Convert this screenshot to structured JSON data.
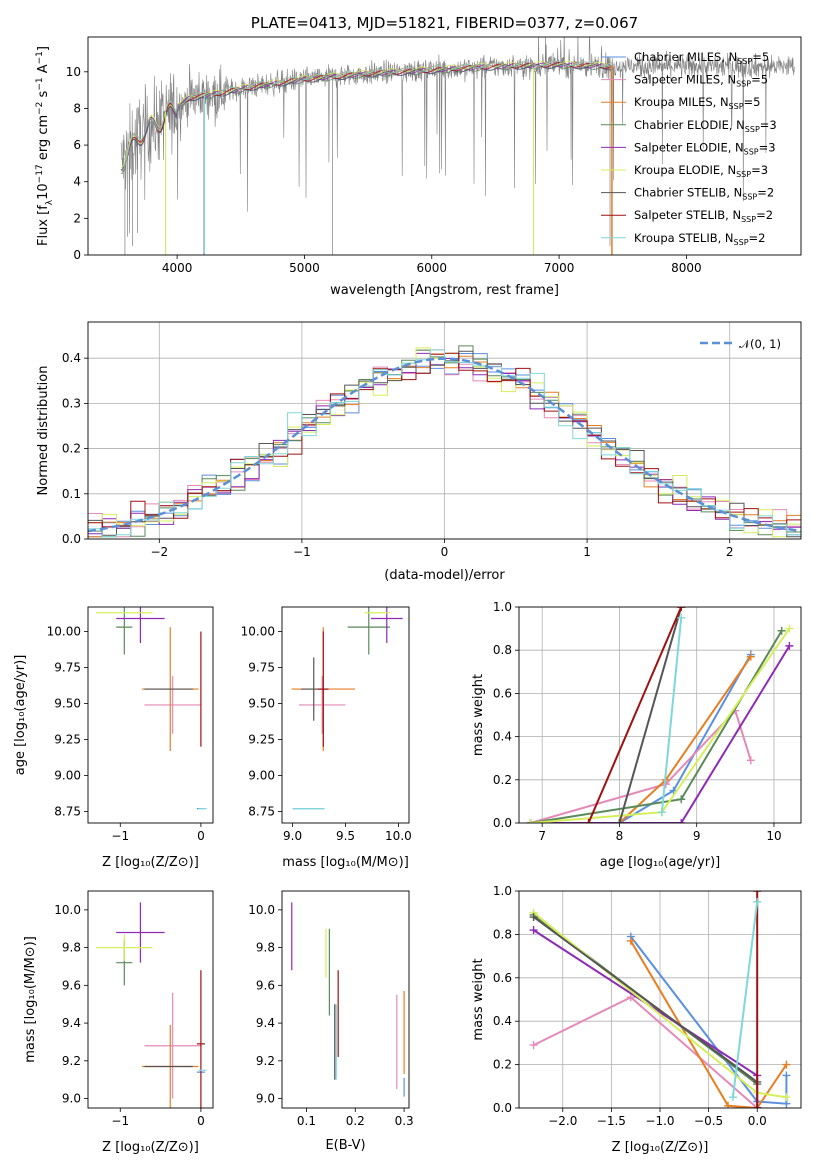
{
  "colors": {
    "Chabrier MILES": "#5b8fe0",
    "Salpeter MILES": "#e589b9",
    "Kroupa MILES": "#e67e22",
    "Chabrier ELODIE": "#5a8a5a",
    "Salpeter ELODIE": "#8e2ab5",
    "Kroupa ELODIE": "#d4ef5a",
    "Chabrier STELIB": "#555555",
    "Salpeter STELIB": "#a01010",
    "Kroupa STELIB": "#7fd8d8",
    "data": "#808080"
  },
  "chart_data": [
    {
      "id": "spectrum",
      "type": "line",
      "title": "PLATE=0413, MJD=51821, FIBERID=0377, z=0.067",
      "xlabel": "wavelength [Angstrom, rest frame]",
      "ylabel": "Flux [fλ10⁻¹⁷ erg cm⁻² s⁻¹ A⁻¹]",
      "xlim": [
        3300,
        8900
      ],
      "ylim": [
        0,
        11.9
      ],
      "xticks": [
        4000,
        5000,
        6000,
        7000,
        8000
      ],
      "yticks": [
        0,
        2,
        4,
        6,
        8,
        10
      ],
      "legend_position": "right",
      "series": [
        {
          "name": "Chabrier MILES, NSSP=5",
          "label_main": "Chabrier MILES, N",
          "sub": "SSP",
          "tail": "=5"
        },
        {
          "name": "Salpeter MILES, NSSP=5",
          "label_main": "Salpeter MILES, N",
          "sub": "SSP",
          "tail": "=5"
        },
        {
          "name": "Kroupa MILES, NSSP=5",
          "label_main": "Kroupa MILES, N",
          "sub": "SSP",
          "tail": "=5"
        },
        {
          "name": "Chabrier ELODIE, NSSP=3",
          "label_main": "Chabrier ELODIE, N",
          "sub": "SSP",
          "tail": "=3"
        },
        {
          "name": "Salpeter ELODIE, NSSP=3",
          "label_main": "Salpeter ELODIE, N",
          "sub": "SSP",
          "tail": "=3"
        },
        {
          "name": "Kroupa ELODIE, NSSP=3",
          "label_main": "Kroupa ELODIE, N",
          "sub": "SSP",
          "tail": "=3"
        },
        {
          "name": "Chabrier STELIB, NSSP=2",
          "label_main": "Chabrier STELIB, N",
          "sub": "SSP",
          "tail": "=2"
        },
        {
          "name": "Salpeter STELIB, NSSP=2",
          "label_main": "Salpeter STELIB, N",
          "sub": "SSP",
          "tail": "=2"
        },
        {
          "name": "Kroupa STELIB, NSSP=2",
          "label_main": "Kroupa STELIB, N",
          "sub": "SSP",
          "tail": "=2"
        }
      ],
      "data_envelope": {
        "x": [
          3560,
          3700,
          3900,
          4100,
          4300,
          4600,
          5000,
          5500,
          6000,
          6500,
          7000,
          7400
        ],
        "y": [
          5.0,
          6.5,
          7.5,
          8.6,
          8.8,
          9.2,
          9.6,
          9.9,
          10.1,
          10.3,
          10.4,
          10.3
        ]
      },
      "model_markers": [
        {
          "series": "Chabrier MILES",
          "x_start": 7420,
          "x_end": 8850,
          "y": 10.3
        },
        {
          "series": "Kroupa MILES",
          "x_start": 7420,
          "x_end": 7420,
          "y": 0
        }
      ]
    },
    {
      "id": "residuals",
      "type": "histogram",
      "xlabel": "(data-model)/error",
      "ylabel": "Normed distribution",
      "xlim": [
        -2.5,
        2.5
      ],
      "ylim": [
        0,
        0.48
      ],
      "xticks": [
        -2,
        -1,
        0,
        1,
        2
      ],
      "yticks": [
        0.0,
        0.1,
        0.2,
        0.3,
        0.4
      ],
      "grid": true,
      "legend": "𝒩(0, 1)",
      "legend_position": "top-right",
      "bin_width": 0.1,
      "bin_start": -2.5
    },
    {
      "id": "age_Z",
      "type": "scatter",
      "xlabel": "Z [log₁₀(Z/Z⊙)]",
      "ylabel": "age  [log₁₀(age/yr)]",
      "xlim": [
        -1.4,
        0.15
      ],
      "ylim": [
        8.67,
        10.17
      ],
      "xticks": [
        -1,
        0
      ],
      "yticks": [
        8.75,
        9.0,
        9.25,
        9.5,
        9.75,
        10.0
      ],
      "points": [
        {
          "series": "Chabrier MILES",
          "x": 0.0,
          "y": 8.77,
          "xerr": 0.05,
          "yerr": 0.0
        },
        {
          "series": "Salpeter MILES",
          "x": -0.35,
          "y": 9.49,
          "xerr": 0.35,
          "yerr": 0.2
        },
        {
          "series": "Kroupa MILES",
          "x": -0.38,
          "y": 9.6,
          "xerr": 0.35,
          "yerr": 0.43
        },
        {
          "series": "Chabrier ELODIE",
          "x": -0.95,
          "y": 10.03,
          "xerr": 0.1,
          "yerr": 0.19
        },
        {
          "series": "Salpeter ELODIE",
          "x": -0.75,
          "y": 10.09,
          "xerr": 0.3,
          "yerr": 0.17
        },
        {
          "series": "Kroupa ELODIE",
          "x": -0.95,
          "y": 10.13,
          "xerr": 0.35,
          "yerr": 0.0
        },
        {
          "series": "Chabrier STELIB",
          "x": -0.4,
          "y": 9.6,
          "xerr": 0.3,
          "yerr": 0.0
        },
        {
          "series": "Salpeter STELIB",
          "x": 0.0,
          "y": 9.6,
          "xerr": 0.0,
          "yerr": 0.4
        },
        {
          "series": "Kroupa STELIB",
          "x": 0.02,
          "y": 8.77,
          "xerr": 0.05,
          "yerr": 0.0
        }
      ]
    },
    {
      "id": "age_mass",
      "type": "scatter",
      "xlabel": "mass [log₁₀(M/M⊙)]",
      "ylabel": "",
      "xlim": [
        8.9,
        10.1
      ],
      "ylim": [
        8.67,
        10.17
      ],
      "xticks": [
        9.0,
        9.5,
        10.0
      ],
      "yticks": [
        8.75,
        9.0,
        9.25,
        9.5,
        9.75,
        10.0
      ],
      "points": [
        {
          "series": "Chabrier MILES",
          "x": 9.15,
          "y": 8.77,
          "xerr": 0.15,
          "yerr": 0.0
        },
        {
          "series": "Salpeter MILES",
          "x": 9.28,
          "y": 9.49,
          "xerr": 0.22,
          "yerr": 0.2
        },
        {
          "series": "Kroupa MILES",
          "x": 9.29,
          "y": 9.6,
          "xerr": 0.3,
          "yerr": 0.43
        },
        {
          "series": "Chabrier ELODIE",
          "x": 9.72,
          "y": 10.03,
          "xerr": 0.2,
          "yerr": 0.19
        },
        {
          "series": "Salpeter ELODIE",
          "x": 9.89,
          "y": 10.09,
          "xerr": 0.15,
          "yerr": 0.17
        },
        {
          "series": "Kroupa ELODIE",
          "x": 9.8,
          "y": 10.13,
          "xerr": 0.12,
          "yerr": 0.0
        },
        {
          "series": "Chabrier STELIB",
          "x": 9.2,
          "y": 9.6,
          "xerr": 0.12,
          "yerr": 0.22
        },
        {
          "series": "Salpeter STELIB",
          "x": 9.29,
          "y": 9.6,
          "xerr": 0.05,
          "yerr": 0.4
        },
        {
          "series": "Kroupa STELIB",
          "x": 9.15,
          "y": 8.77,
          "xerr": 0.15,
          "yerr": 0.0
        }
      ]
    },
    {
      "id": "weight_age",
      "type": "line",
      "xlabel": "age  [log₁₀(age/yr)]",
      "ylabel": "mass weight",
      "xlim": [
        6.7,
        10.35
      ],
      "ylim": [
        0,
        1.0
      ],
      "xticks": [
        7,
        8,
        9,
        10
      ],
      "yticks": [
        0.0,
        0.2,
        0.4,
        0.6,
        0.8,
        1.0
      ],
      "grid": true,
      "series": [
        {
          "name": "Chabrier MILES",
          "x": [
            6.85,
            8.0,
            8.7,
            9.7
          ],
          "y": [
            0.0,
            0.0,
            0.15,
            0.78
          ]
        },
        {
          "name": "Salpeter MILES",
          "x": [
            6.85,
            8.6,
            9.5,
            9.7
          ],
          "y": [
            0.0,
            0.18,
            0.52,
            0.29
          ]
        },
        {
          "name": "Kroupa MILES",
          "x": [
            6.85,
            8.0,
            8.6,
            9.7
          ],
          "y": [
            0.0,
            0.0,
            0.2,
            0.77
          ]
        },
        {
          "name": "Chabrier ELODIE",
          "x": [
            6.85,
            8.8,
            10.1
          ],
          "y": [
            0.0,
            0.11,
            0.89
          ]
        },
        {
          "name": "Salpeter ELODIE",
          "x": [
            6.85,
            8.8,
            10.2
          ],
          "y": [
            0.0,
            0.0,
            0.82
          ]
        },
        {
          "name": "Kroupa ELODIE",
          "x": [
            6.85,
            8.55,
            10.2
          ],
          "y": [
            0.0,
            0.05,
            0.9
          ]
        },
        {
          "name": "Chabrier STELIB",
          "x": [
            8.0,
            8.8
          ],
          "y": [
            0.0,
            1.0
          ]
        },
        {
          "name": "Salpeter STELIB",
          "x": [
            7.6,
            8.8
          ],
          "y": [
            0.0,
            1.0
          ]
        },
        {
          "name": "Kroupa STELIB",
          "x": [
            8.55,
            8.8
          ],
          "y": [
            0.05,
            0.95
          ]
        }
      ]
    },
    {
      "id": "mass_Z",
      "type": "scatter",
      "xlabel": "Z [log₁₀(Z/Z⊙)]",
      "ylabel": "mass [log₁₀(M/M⊙)]",
      "xlim": [
        -1.4,
        0.15
      ],
      "ylim": [
        8.95,
        10.1
      ],
      "xticks": [
        -1,
        0
      ],
      "yticks": [
        9.0,
        9.2,
        9.4,
        9.6,
        9.8,
        10.0
      ],
      "points": [
        {
          "series": "Chabrier MILES",
          "x": 0.0,
          "y": 9.14,
          "xerr": 0.05,
          "yerr": 0.0
        },
        {
          "series": "Salpeter MILES",
          "x": -0.35,
          "y": 9.28,
          "xerr": 0.35,
          "yerr": 0.28
        },
        {
          "series": "Kroupa MILES",
          "x": -0.38,
          "y": 9.17,
          "xerr": 0.35,
          "yerr": 0.22
        },
        {
          "series": "Chabrier ELODIE",
          "x": -0.95,
          "y": 9.72,
          "xerr": 0.1,
          "yerr": 0.12
        },
        {
          "series": "Salpeter ELODIE",
          "x": -0.75,
          "y": 9.88,
          "xerr": 0.3,
          "yerr": 0.16
        },
        {
          "series": "Kroupa ELODIE",
          "x": -0.95,
          "y": 9.8,
          "xerr": 0.35,
          "yerr": 0.07
        },
        {
          "series": "Chabrier STELIB",
          "x": -0.4,
          "y": 9.17,
          "xerr": 0.3,
          "yerr": 0.0
        },
        {
          "series": "Salpeter STELIB",
          "x": 0.0,
          "y": 9.29,
          "xerr": 0.05,
          "yerr": 0.39
        },
        {
          "series": "Kroupa STELIB",
          "x": 0.02,
          "y": 9.15,
          "xerr": 0.05,
          "yerr": 0.0
        }
      ]
    },
    {
      "id": "mass_EBV",
      "type": "scatter",
      "xlabel": "E(B-V)",
      "ylabel": "",
      "xlim": [
        0.05,
        0.31
      ],
      "ylim": [
        8.95,
        10.1
      ],
      "xticks": [
        0.1,
        0.2,
        0.3
      ],
      "yticks": [
        9.0,
        9.2,
        9.4,
        9.6,
        9.8,
        10.0
      ],
      "points": [
        {
          "series": "Chabrier MILES",
          "x": 0.3,
          "y": 9.06,
          "xerr": 0.0,
          "yerr": 0.05
        },
        {
          "series": "Salpeter MILES",
          "x": 0.285,
          "y": 9.3,
          "xerr": 0.0,
          "yerr": 0.25
        },
        {
          "series": "Kroupa MILES",
          "x": 0.3,
          "y": 9.35,
          "xerr": 0.0,
          "yerr": 0.22
        },
        {
          "series": "Chabrier ELODIE",
          "x": 0.147,
          "y": 9.67,
          "xerr": 0.0,
          "yerr": 0.23
        },
        {
          "series": "Salpeter ELODIE",
          "x": 0.07,
          "y": 9.86,
          "xerr": 0.0,
          "yerr": 0.18
        },
        {
          "series": "Kroupa ELODIE",
          "x": 0.14,
          "y": 9.77,
          "xerr": 0.0,
          "yerr": 0.13
        },
        {
          "series": "Chabrier STELIB",
          "x": 0.158,
          "y": 9.3,
          "xerr": 0.0,
          "yerr": 0.2
        },
        {
          "series": "Salpeter STELIB",
          "x": 0.165,
          "y": 9.45,
          "xerr": 0.0,
          "yerr": 0.23
        },
        {
          "series": "Kroupa STELIB",
          "x": 0.161,
          "y": 9.3,
          "xerr": 0.0,
          "yerr": 0.2
        }
      ]
    },
    {
      "id": "weight_Z",
      "type": "line",
      "xlabel": "Z [log₁₀(Z/Z⊙)]",
      "ylabel": "mass weight",
      "xlim": [
        -2.45,
        0.45
      ],
      "ylim": [
        0,
        1.0
      ],
      "xticks": [
        -2.0,
        -1.5,
        -1.0,
        -0.5,
        0.0
      ],
      "yticks": [
        0.0,
        0.2,
        0.4,
        0.6,
        0.8,
        1.0
      ],
      "grid": true,
      "series": [
        {
          "name": "Chabrier MILES",
          "x": [
            -1.3,
            0.0,
            0.3,
            0.3
          ],
          "y": [
            0.79,
            0.03,
            0.02,
            0.15
          ]
        },
        {
          "name": "Salpeter MILES",
          "x": [
            -2.3,
            -1.3,
            0.0
          ],
          "y": [
            0.29,
            0.51,
            0.0
          ]
        },
        {
          "name": "Kroupa MILES",
          "x": [
            -1.3,
            -0.3,
            0.0,
            0.3
          ],
          "y": [
            0.77,
            0.01,
            0.0,
            0.2
          ]
        },
        {
          "name": "Chabrier ELODIE",
          "x": [
            -2.3,
            0.0
          ],
          "y": [
            0.89,
            0.11
          ]
        },
        {
          "name": "Salpeter ELODIE",
          "x": [
            -2.3,
            0.0,
            0.0
          ],
          "y": [
            0.82,
            0.15,
            0.0
          ]
        },
        {
          "name": "Kroupa ELODIE",
          "x": [
            -2.3,
            0.0,
            0.3
          ],
          "y": [
            0.9,
            0.07,
            0.05
          ]
        },
        {
          "name": "Chabrier STELIB",
          "x": [
            -2.3,
            0.0
          ],
          "y": [
            0.88,
            0.12
          ]
        },
        {
          "name": "Salpeter STELIB",
          "x": [
            0.0,
            0.0
          ],
          "y": [
            0.0,
            1.0
          ]
        },
        {
          "name": "Kroupa STELIB",
          "x": [
            -0.25,
            0.0
          ],
          "y": [
            0.05,
            0.95
          ]
        }
      ]
    }
  ]
}
